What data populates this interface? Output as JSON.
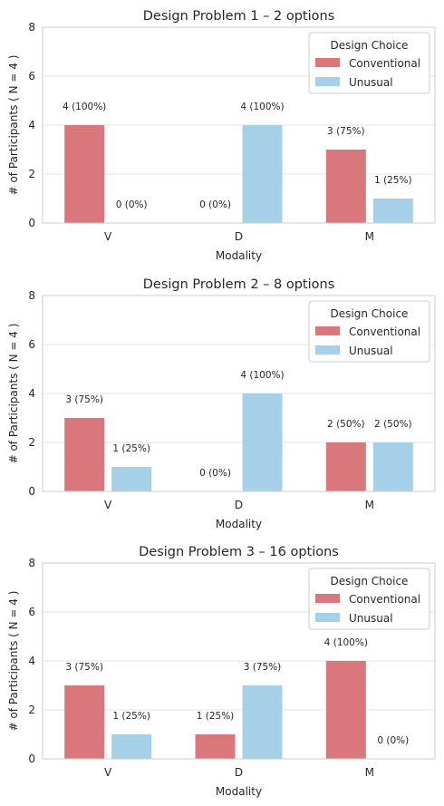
{
  "colors": {
    "conventional": "#d9777c",
    "unusual": "#a6cfe8"
  },
  "chart_data": [
    {
      "type": "bar",
      "title": "Design Problem 1 – 2 options",
      "xlabel": "Modality",
      "ylabel": "# of Participants ( N = 4 )",
      "categories": [
        "V",
        "D",
        "M"
      ],
      "ylim": [
        0,
        8
      ],
      "yticks": [
        "0",
        "2",
        "4",
        "6",
        "8"
      ],
      "grid": true,
      "legend": {
        "title": "Design Choice",
        "position": "top-right"
      },
      "series": [
        {
          "name": "Conventional",
          "values": [
            4,
            0,
            3
          ],
          "labels": [
            "4 (100%)",
            "0 (0%)",
            "3 (75%)"
          ]
        },
        {
          "name": "Unusual",
          "values": [
            0,
            4,
            1
          ],
          "labels": [
            "0 (0%)",
            "4 (100%)",
            "1 (25%)"
          ]
        }
      ]
    },
    {
      "type": "bar",
      "title": "Design Problem 2 – 8 options",
      "xlabel": "Modality",
      "ylabel": "# of Participants ( N = 4 )",
      "categories": [
        "V",
        "D",
        "M"
      ],
      "ylim": [
        0,
        8
      ],
      "yticks": [
        "0",
        "2",
        "4",
        "6",
        "8"
      ],
      "grid": true,
      "legend": {
        "title": "Design Choice",
        "position": "top-right"
      },
      "series": [
        {
          "name": "Conventional",
          "values": [
            3,
            0,
            2
          ],
          "labels": [
            "3 (75%)",
            "0 (0%)",
            "2 (50%)"
          ]
        },
        {
          "name": "Unusual",
          "values": [
            1,
            4,
            2
          ],
          "labels": [
            "1 (25%)",
            "4 (100%)",
            "2 (50%)"
          ]
        }
      ]
    },
    {
      "type": "bar",
      "title": "Design Problem 3 – 16 options",
      "xlabel": "Modality",
      "ylabel": "# of Participants ( N = 4 )",
      "categories": [
        "V",
        "D",
        "M"
      ],
      "ylim": [
        0,
        8
      ],
      "yticks": [
        "0",
        "2",
        "4",
        "6",
        "8"
      ],
      "grid": true,
      "legend": {
        "title": "Design Choice",
        "position": "top-right"
      },
      "series": [
        {
          "name": "Conventional",
          "values": [
            3,
            1,
            4
          ],
          "labels": [
            "3 (75%)",
            "1 (25%)",
            "4 (100%)"
          ]
        },
        {
          "name": "Unusual",
          "values": [
            1,
            3,
            0
          ],
          "labels": [
            "1 (25%)",
            "3 (75%)",
            "0 (0%)"
          ]
        }
      ]
    }
  ]
}
